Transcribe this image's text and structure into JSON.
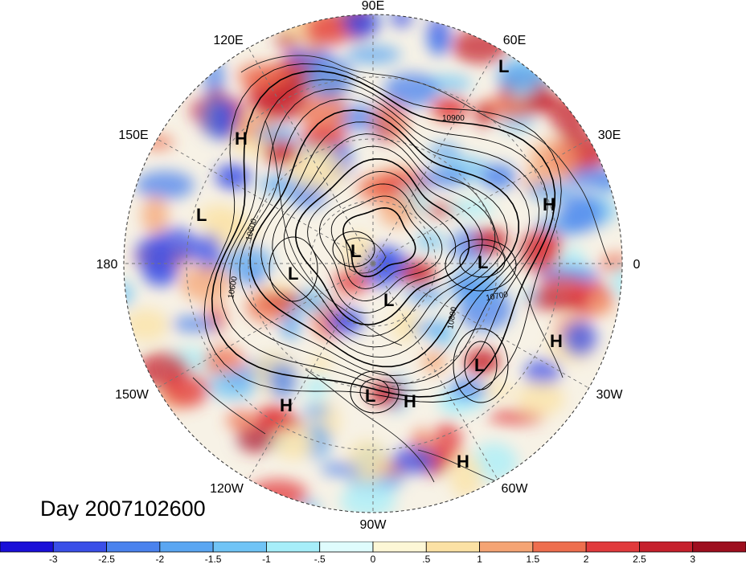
{
  "title": "Day 2007102600",
  "longitude_labels": [
    "90E",
    "60E",
    "30E",
    "0",
    "30W",
    "60W",
    "90W",
    "120W",
    "150W",
    "180",
    "150E",
    "120E"
  ],
  "contour_labels": [
    "10900",
    "10600",
    "10600",
    "10700",
    "10800"
  ],
  "pressure_centers": [
    "L",
    "H",
    "L",
    "H",
    "L",
    "L",
    "L",
    "L",
    "H",
    "L",
    "H",
    "L",
    "H",
    "H"
  ],
  "colorbar": {
    "ticks": [
      "-3",
      "-2.5",
      "-2",
      "-1.5",
      "-1",
      "-.5",
      "0",
      ".5",
      "1",
      "1.5",
      "2",
      "2.5",
      "3"
    ],
    "colors": [
      "#1a0fd8",
      "#3a4fe8",
      "#4a82ee",
      "#5aa6f2",
      "#70c4f6",
      "#a6eef9",
      "#dffcfd",
      "#fdf7d6",
      "#fbe1a4",
      "#f5a474",
      "#ee6e4e",
      "#e13a3c",
      "#c6202c",
      "#9e0e1e"
    ]
  },
  "colors": {
    "background": "#ffffff",
    "contour": "#000000",
    "grid": "#777777"
  }
}
